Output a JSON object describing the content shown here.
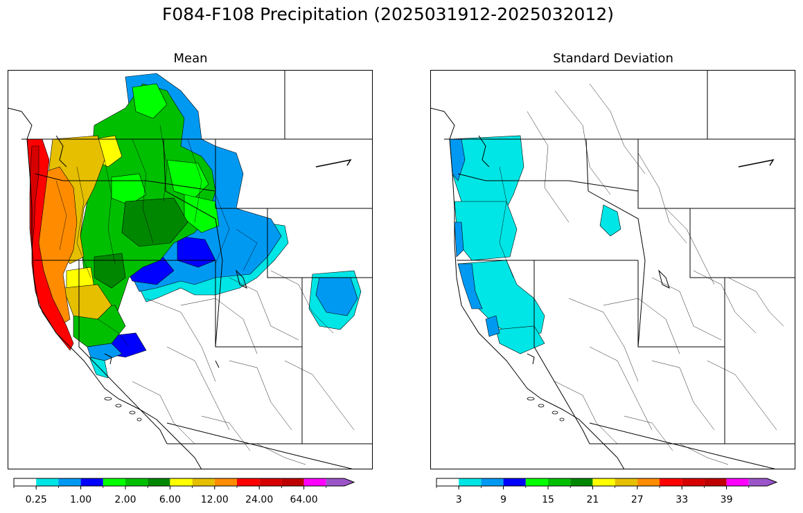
{
  "figure": {
    "suptitle": "F084-F108 Precipitation (2025031912-2025032012)"
  },
  "chart_data": [
    {
      "type": "heatmap",
      "title": "Mean",
      "colorbar": {
        "colors": [
          "#ffffff",
          "#00e5e5",
          "#0099f2",
          "#0000ff",
          "#00ff00",
          "#00bf00",
          "#008700",
          "#ffff00",
          "#e5bf00",
          "#ff8c00",
          "#ff0000",
          "#d70000",
          "#bf0000",
          "#ff00ff",
          "#9b55c9"
        ],
        "tick_labels": [
          "0.25",
          "1.00",
          "2.00",
          "6.00",
          "12.00",
          "24.00",
          "64.00"
        ],
        "extend": "max"
      }
    },
    {
      "type": "heatmap",
      "title": "Standard Deviation",
      "colorbar": {
        "colors": [
          "#ffffff",
          "#00e5e5",
          "#0099f2",
          "#0000ff",
          "#00ff00",
          "#00bf00",
          "#008700",
          "#ffff00",
          "#e5bf00",
          "#ff8c00",
          "#ff0000",
          "#d70000",
          "#bf0000",
          "#ff00ff",
          "#9b55c9"
        ],
        "tick_labels": [
          "3",
          "9",
          "15",
          "21",
          "27",
          "33",
          "39"
        ],
        "extend": "max"
      }
    }
  ]
}
